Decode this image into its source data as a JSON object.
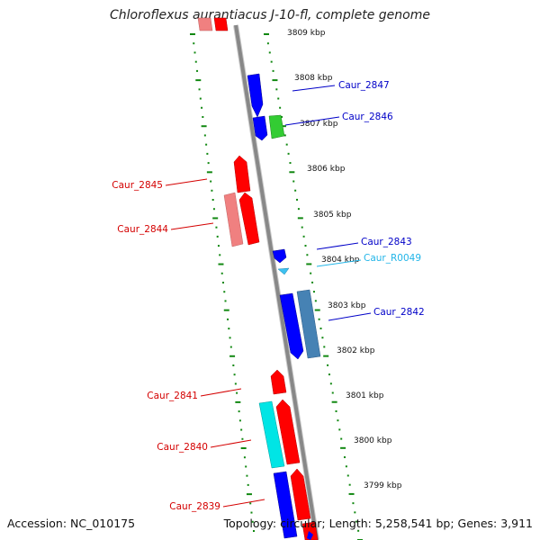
{
  "title": "Chloroflexus aurantiacus J-10-fl, complete genome",
  "footer": {
    "accession": "Accession: NC_010175",
    "summary": "Topology: circular; Length: 5,258,541 bp; Genes: 3,911"
  },
  "colors": {
    "forward_gene": "#ff0000",
    "reverse_gene": "#0000ff",
    "forward_rna": "#00e5e5",
    "reverse_rna": "#3ec1f0",
    "pseudo_forward": "#f08080",
    "steelblue_gene": "#4682b4",
    "green_gene": "#33cc33",
    "tick_green": "#118811",
    "backbone": "#8a8a8a"
  },
  "scale_ticks": [
    "3809 kbp",
    "3808 kbp",
    "3807 kbp",
    "3806 kbp",
    "3805 kbp",
    "3804 kbp",
    "3803 kbp",
    "3802 kbp",
    "3801 kbp",
    "3800 kbp",
    "3799 kbp"
  ],
  "gene_labels": [
    {
      "name": "Caur_2847",
      "color": "#0000c8"
    },
    {
      "name": "Caur_2846",
      "color": "#0000c8"
    },
    {
      "name": "Caur_2845",
      "color": "#d40000"
    },
    {
      "name": "Caur_2844",
      "color": "#d40000"
    },
    {
      "name": "Caur_2843",
      "color": "#0000c8"
    },
    {
      "name": "Caur_R0049",
      "color": "#22b5e8"
    },
    {
      "name": "Caur_2842",
      "color": "#0000c8"
    },
    {
      "name": "Caur_2841",
      "color": "#d40000"
    },
    {
      "name": "Caur_2840",
      "color": "#d40000"
    },
    {
      "name": "Caur_2839",
      "color": "#d40000"
    }
  ]
}
